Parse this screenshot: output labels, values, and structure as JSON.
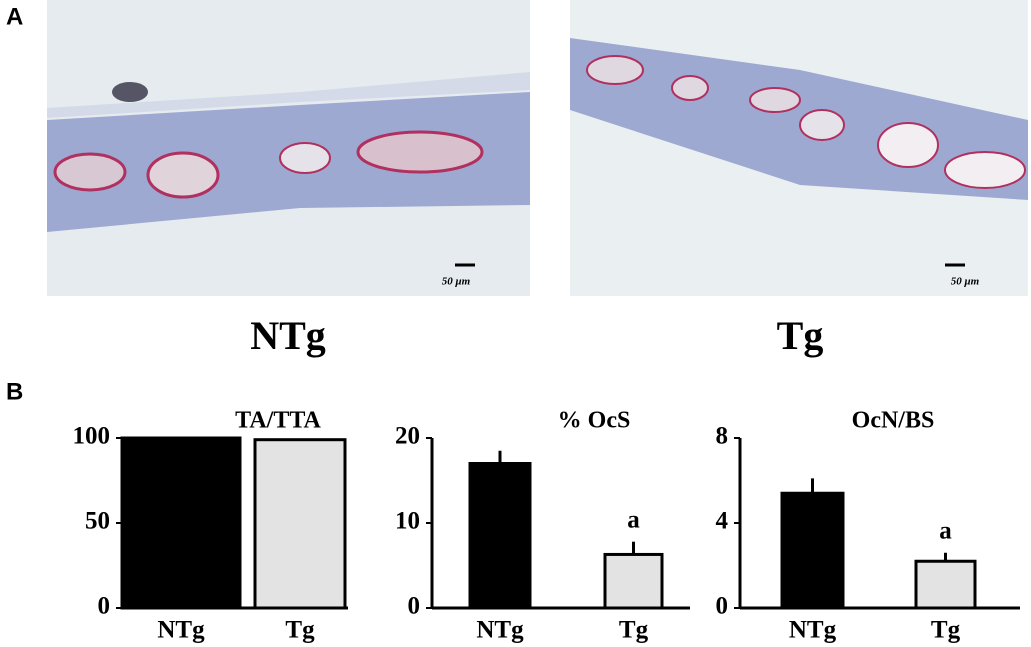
{
  "panels": {
    "a": {
      "label": "A",
      "images": [
        {
          "caption": "NTg",
          "scale_bar": "50 μm"
        },
        {
          "caption": "Tg",
          "scale_bar": "50 μm"
        }
      ]
    },
    "b": {
      "label": "B"
    }
  },
  "chart_data": [
    {
      "type": "bar",
      "title": "TA/TTA",
      "categories": [
        "NTg",
        "Tg"
      ],
      "values": [
        100,
        99
      ],
      "colors": [
        "#000000",
        "#e3e3e3"
      ],
      "ylim": [
        0,
        100
      ],
      "yticks": [
        0,
        50,
        100
      ]
    },
    {
      "type": "bar",
      "title": "% OcS",
      "categories": [
        "NTg",
        "Tg"
      ],
      "values": [
        17,
        6.3
      ],
      "errors": [
        1.5,
        1.5
      ],
      "colors": [
        "#000000",
        "#e3e3e3"
      ],
      "ylim": [
        0,
        20
      ],
      "yticks": [
        0,
        10,
        20
      ],
      "annotations": [
        {
          "category": "Tg",
          "text": "a"
        }
      ]
    },
    {
      "type": "bar",
      "title": "OcN/BS",
      "categories": [
        "NTg",
        "Tg"
      ],
      "values": [
        5.4,
        2.2
      ],
      "errors": [
        0.7,
        0.4
      ],
      "colors": [
        "#000000",
        "#e3e3e3"
      ],
      "ylim": [
        0,
        8
      ],
      "yticks": [
        0,
        4,
        8
      ],
      "annotations": [
        {
          "category": "Tg",
          "text": "a"
        }
      ]
    }
  ]
}
